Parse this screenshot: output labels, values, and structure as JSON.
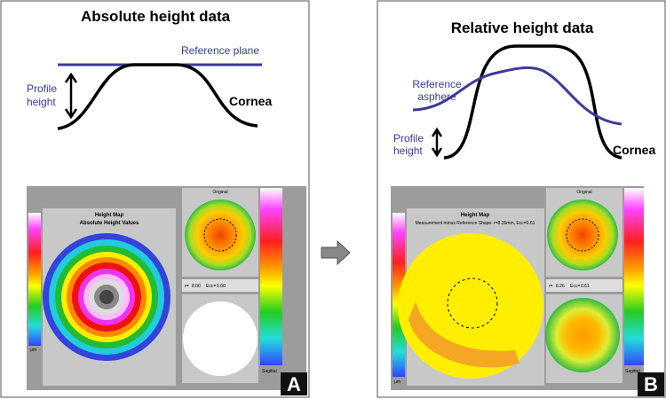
{
  "panels": [
    {
      "title": "Absolute height data",
      "reference_label": [
        "Reference plane"
      ],
      "profile_label": [
        "Profile",
        "height"
      ],
      "surface_label": "Cornea",
      "letter": "A",
      "screenshot": {
        "map_title": "Height Map",
        "map_subtitle": "Absolute Height Values",
        "inset_title": "Original",
        "unit": "µm",
        "r_label": "r=",
        "r_value": "8.00",
        "ecc_label": "Ecc=",
        "ecc_value": "0.00",
        "scale_label": "Sagittal"
      }
    },
    {
      "title": "Relative height data",
      "reference_label": [
        "Reference",
        "asphere"
      ],
      "profile_label": [
        "Profile",
        "height"
      ],
      "surface_label": "Cornea",
      "letter": "B",
      "screenshot": {
        "map_title": "Height Map",
        "map_subtitle": "Measurement minus Reference Shape: r=8.26mm, Ecc=0.61",
        "inset_title": "Original",
        "unit": "µm",
        "r_label": "r=",
        "r_value": "8.26",
        "ecc_label": "Ecc=",
        "ecc_value": "0.61",
        "scale_label": "Sagittal"
      }
    }
  ]
}
